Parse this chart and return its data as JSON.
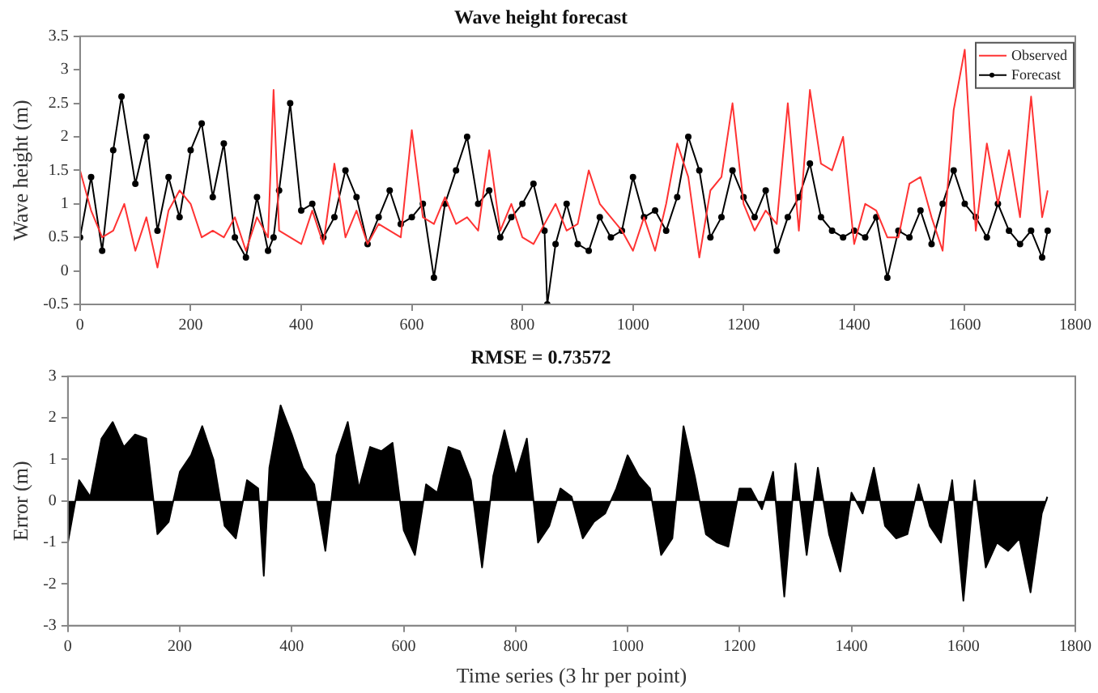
{
  "chart_data": [
    {
      "type": "line",
      "title": "Wave height forecast",
      "ylabel": "Wave height (m)",
      "xlim": [
        0,
        1800
      ],
      "xticks": [
        0,
        200,
        400,
        600,
        800,
        1000,
        1200,
        1400,
        1600,
        1800
      ],
      "ylim": [
        -0.5,
        3.5
      ],
      "yticks": [
        -0.5,
        0,
        0.5,
        1,
        1.5,
        2,
        2.5,
        3,
        3.5
      ],
      "grid": false,
      "legend": "top right",
      "line_style": "solid",
      "series": [
        {
          "name": "Observed",
          "color": "#ff3333",
          "marker": "none",
          "x": [
            0,
            20,
            40,
            60,
            80,
            100,
            120,
            140,
            160,
            180,
            200,
            220,
            240,
            260,
            280,
            300,
            320,
            340,
            350,
            360,
            380,
            400,
            420,
            440,
            460,
            480,
            500,
            520,
            540,
            560,
            580,
            600,
            620,
            640,
            660,
            680,
            700,
            720,
            740,
            760,
            780,
            800,
            820,
            840,
            860,
            880,
            900,
            920,
            940,
            960,
            980,
            1000,
            1020,
            1040,
            1060,
            1080,
            1100,
            1120,
            1140,
            1160,
            1180,
            1200,
            1220,
            1240,
            1260,
            1280,
            1300,
            1320,
            1340,
            1360,
            1380,
            1400,
            1420,
            1440,
            1460,
            1480,
            1500,
            1520,
            1540,
            1560,
            1580,
            1600,
            1620,
            1640,
            1660,
            1680,
            1700,
            1720,
            1740,
            1750
          ],
          "values": [
            1.5,
            0.9,
            0.5,
            0.6,
            1.0,
            0.3,
            0.8,
            0.05,
            0.9,
            1.2,
            1.0,
            0.5,
            0.6,
            0.5,
            0.8,
            0.3,
            0.8,
            0.5,
            2.7,
            0.6,
            0.5,
            0.4,
            0.9,
            0.4,
            1.6,
            0.5,
            0.9,
            0.4,
            0.7,
            0.6,
            0.5,
            2.1,
            0.8,
            0.7,
            1.1,
            0.7,
            0.8,
            0.6,
            1.8,
            0.6,
            1.0,
            0.5,
            0.4,
            0.7,
            1.0,
            0.6,
            0.7,
            1.5,
            1.0,
            0.8,
            0.6,
            0.3,
            0.8,
            0.3,
            1.0,
            1.9,
            1.4,
            0.2,
            1.2,
            1.4,
            2.5,
            1.0,
            0.6,
            0.9,
            0.7,
            2.5,
            0.6,
            2.7,
            1.6,
            1.5,
            2.0,
            0.4,
            1.0,
            0.9,
            0.5,
            0.5,
            1.3,
            1.4,
            0.8,
            0.3,
            2.4,
            3.3,
            0.6,
            1.9,
            1.0,
            1.8,
            0.8,
            2.6,
            0.8,
            1.2
          ]
        },
        {
          "name": "Forecast",
          "color": "#000000",
          "marker": "circle",
          "x": [
            0,
            20,
            40,
            60,
            75,
            100,
            120,
            140,
            160,
            180,
            200,
            220,
            240,
            260,
            280,
            300,
            320,
            340,
            350,
            360,
            380,
            400,
            420,
            440,
            460,
            480,
            500,
            520,
            540,
            560,
            580,
            600,
            620,
            640,
            660,
            680,
            700,
            720,
            740,
            760,
            780,
            800,
            820,
            840,
            845,
            860,
            880,
            900,
            920,
            940,
            960,
            980,
            1000,
            1020,
            1040,
            1060,
            1080,
            1100,
            1120,
            1140,
            1160,
            1180,
            1200,
            1220,
            1240,
            1260,
            1280,
            1300,
            1320,
            1340,
            1360,
            1380,
            1400,
            1420,
            1440,
            1460,
            1480,
            1500,
            1520,
            1540,
            1560,
            1580,
            1600,
            1620,
            1640,
            1660,
            1680,
            1700,
            1720,
            1740,
            1750
          ],
          "values": [
            0.5,
            1.4,
            0.3,
            1.8,
            2.6,
            1.3,
            2.0,
            0.6,
            1.4,
            0.8,
            1.8,
            2.2,
            1.1,
            1.9,
            0.5,
            0.2,
            1.1,
            0.3,
            0.5,
            1.2,
            2.5,
            0.9,
            1.0,
            0.5,
            0.8,
            1.5,
            1.1,
            0.4,
            0.8,
            1.2,
            0.7,
            0.8,
            1.0,
            -0.1,
            1.0,
            1.5,
            2.0,
            1.0,
            1.2,
            0.5,
            0.8,
            1.0,
            1.3,
            0.6,
            -0.5,
            0.4,
            1.0,
            0.4,
            0.3,
            0.8,
            0.5,
            0.6,
            1.4,
            0.8,
            0.9,
            0.6,
            1.1,
            2.0,
            1.5,
            0.5,
            0.8,
            1.5,
            1.1,
            0.8,
            1.2,
            0.3,
            0.8,
            1.1,
            1.6,
            0.8,
            0.6,
            0.5,
            0.6,
            0.5,
            0.8,
            -0.1,
            0.6,
            0.5,
            0.9,
            0.4,
            1.0,
            1.5,
            1.0,
            0.8,
            0.5,
            1.0,
            0.6,
            0.4,
            0.6,
            0.2,
            0.6
          ]
        }
      ]
    },
    {
      "type": "area",
      "title": "RMSE = 0.73572",
      "xlabel": "Time series (3 hr per point)",
      "ylabel": "Error (m)",
      "xlim": [
        0,
        1800
      ],
      "xticks": [
        0,
        200,
        400,
        600,
        800,
        1000,
        1200,
        1400,
        1600,
        1800
      ],
      "ylim": [
        -3,
        3
      ],
      "yticks": [
        -3,
        -2,
        -1,
        0,
        1,
        2,
        3
      ],
      "grid": false,
      "series": [
        {
          "color": "#000000",
          "x": [
            0,
            20,
            40,
            60,
            80,
            100,
            120,
            140,
            160,
            180,
            200,
            220,
            240,
            260,
            280,
            300,
            320,
            340,
            350,
            360,
            380,
            400,
            420,
            440,
            460,
            480,
            500,
            520,
            540,
            560,
            580,
            600,
            620,
            640,
            660,
            680,
            700,
            720,
            740,
            760,
            780,
            800,
            820,
            840,
            860,
            880,
            900,
            920,
            940,
            960,
            980,
            1000,
            1020,
            1040,
            1060,
            1080,
            1100,
            1120,
            1140,
            1160,
            1180,
            1200,
            1220,
            1240,
            1260,
            1280,
            1300,
            1320,
            1340,
            1360,
            1380,
            1400,
            1420,
            1440,
            1460,
            1480,
            1500,
            1520,
            1540,
            1560,
            1580,
            1600,
            1620,
            1640,
            1660,
            1680,
            1700,
            1720,
            1740,
            1750
          ],
          "values": [
            -1.0,
            0.5,
            0.1,
            1.5,
            1.9,
            1.3,
            1.6,
            1.5,
            -0.8,
            -0.5,
            0.7,
            1.1,
            1.8,
            1.0,
            -0.6,
            -0.9,
            0.5,
            0.3,
            -1.8,
            0.8,
            2.3,
            1.6,
            0.8,
            0.4,
            -1.2,
            1.1,
            1.9,
            0.3,
            1.3,
            1.2,
            1.4,
            -0.7,
            -1.3,
            0.4,
            0.2,
            1.3,
            1.2,
            0.5,
            -1.6,
            0.6,
            1.7,
            0.6,
            1.5,
            -1.0,
            -0.6,
            0.3,
            0.1,
            -0.9,
            -0.5,
            -0.3,
            0.3,
            1.1,
            0.6,
            0.3,
            -1.3,
            -0.9,
            1.8,
            0.6,
            -0.8,
            -1.0,
            -1.1,
            0.3,
            0.3,
            -0.2,
            0.7,
            -2.3,
            0.9,
            -1.3,
            0.8,
            -0.8,
            -1.7,
            0.2,
            -0.3,
            0.8,
            -0.6,
            -0.9,
            -0.8,
            0.4,
            -0.6,
            -1.0,
            0.5,
            -2.4,
            0.5,
            -1.6,
            -1.0,
            -1.2,
            -0.9,
            -2.2,
            -0.3,
            0.1
          ]
        }
      ]
    }
  ]
}
